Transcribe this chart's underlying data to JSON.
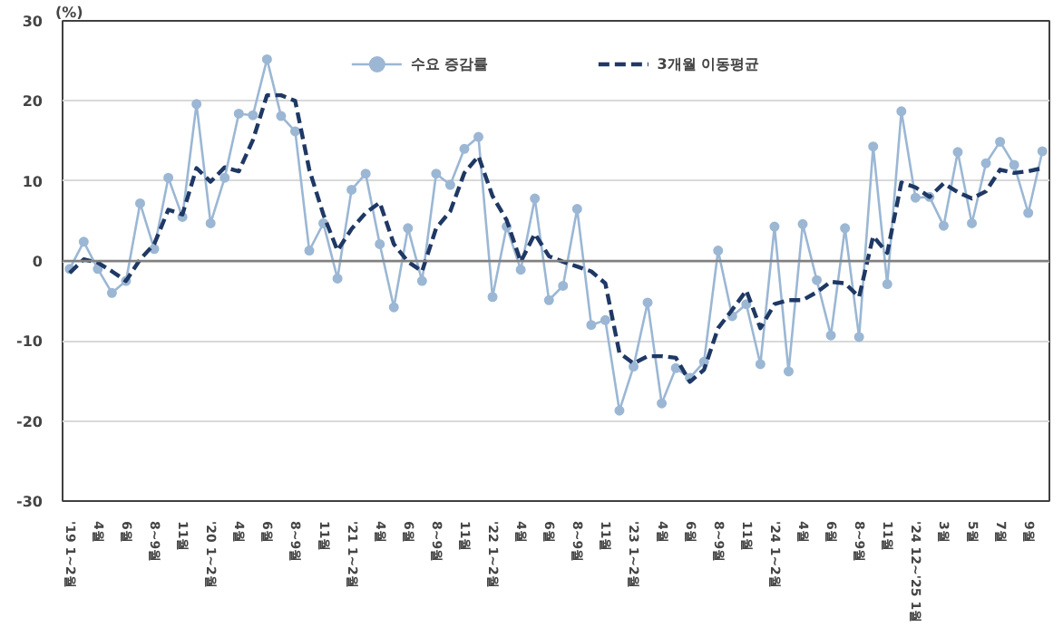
{
  "chart_data": {
    "type": "line",
    "ylabel": "(%)",
    "categories": [
      "'19 1~2월",
      null,
      "4월",
      null,
      "6월",
      null,
      "8~9월",
      null,
      "11월",
      null,
      "'20 1~2월",
      null,
      "4월",
      null,
      "6월",
      null,
      "8~9월",
      null,
      "11월",
      null,
      "'21 1~2월",
      null,
      "4월",
      null,
      "6월",
      null,
      "8~9월",
      null,
      "11월",
      null,
      "'22 1~2월",
      null,
      "4월",
      null,
      "6월",
      null,
      "8~9월",
      null,
      "11월",
      null,
      "'23 1~2월",
      null,
      "4월",
      null,
      "6월",
      null,
      "8~9월",
      null,
      "11월",
      null,
      "'24 1~2월",
      null,
      "4월",
      null,
      "6월",
      null,
      "8~9월",
      null,
      "11월",
      null,
      "'24 12~'25 1월",
      null,
      "3월",
      null,
      "5월",
      null,
      "7월",
      null,
      "9월",
      null
    ],
    "series": [
      {
        "name": "수요 증감률",
        "color": "#9bb7d4",
        "marker": "circle",
        "line_style": "solid",
        "values": [
          -1.0,
          2.4,
          -1.0,
          -4.0,
          -2.5,
          7.2,
          1.5,
          10.4,
          5.5,
          19.6,
          4.7,
          10.4,
          18.4,
          18.2,
          25.2,
          18.1,
          16.2,
          1.3,
          4.7,
          -2.2,
          8.9,
          10.9,
          2.1,
          -5.8,
          4.1,
          -2.5,
          10.9,
          9.5,
          14.0,
          15.5,
          -4.5,
          4.3,
          -1.1,
          7.8,
          -4.9,
          -3.1,
          6.5,
          -8.0,
          -7.4,
          -18.7,
          -13.2,
          -5.2,
          -17.8,
          -13.4,
          -14.6,
          -12.6,
          1.3,
          -6.9,
          -5.4,
          -12.9,
          4.3,
          -13.8,
          4.6,
          -2.4,
          -9.3,
          4.1,
          -9.5,
          14.3,
          -2.9,
          18.7,
          7.9,
          8.0,
          4.4,
          13.6,
          4.7,
          12.2,
          14.9,
          12.0,
          6.0,
          13.7
        ]
      },
      {
        "name": "3개월 이동평균",
        "color": "#1f3864",
        "marker": "none",
        "line_style": "dashed",
        "values": [
          -1.5,
          0.2,
          -0.2,
          -1.3,
          -2.5,
          0.2,
          2.1,
          6.4,
          5.8,
          11.6,
          9.9,
          11.7,
          11.2,
          15.1,
          20.7,
          20.7,
          20.0,
          11.4,
          5.8,
          1.3,
          4.0,
          6.0,
          7.3,
          2.1,
          -0.1,
          -1.3,
          4.1,
          6.2,
          11.0,
          13.1,
          8.1,
          5.1,
          -0.1,
          3.4,
          0.6,
          -0.1,
          -0.7,
          -1.3,
          -2.8,
          -11.5,
          -12.8,
          -11.9,
          -11.9,
          -12.1,
          -15.1,
          -13.6,
          -8.4,
          -6.1,
          -3.7,
          -8.4,
          -5.4,
          -4.9,
          -4.9,
          -3.9,
          -2.6,
          -2.8,
          -4.5,
          3.1,
          1.0,
          9.8,
          9.2,
          8.0,
          9.7,
          8.6,
          7.8,
          8.7,
          11.4,
          11.0,
          11.2,
          11.6
        ]
      }
    ],
    "ylim": [
      -30,
      30
    ],
    "yticks": [
      -30,
      -20,
      -10,
      0,
      10,
      20,
      30
    ],
    "ref_lines": [
      {
        "axis": "y",
        "value": 0,
        "color": "#808080"
      }
    ],
    "grid": "y",
    "legend": "top"
  }
}
